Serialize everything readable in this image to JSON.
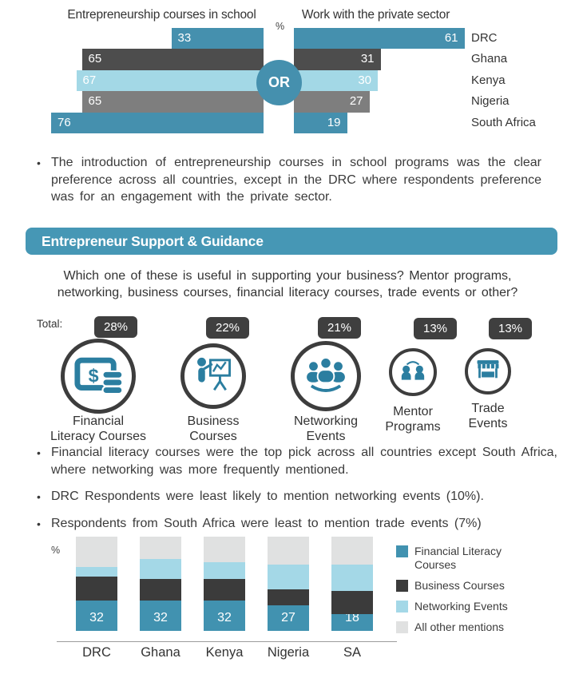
{
  "section_header": {
    "title": "Entrepreneur Support & Guidance",
    "bg_color": "#4697b5"
  },
  "bullets_top": [
    "The introduction of entrepreneurship courses in school programs was the clear preference across all countries, except in the DRC where respondents preference was for an engagement with the private sector."
  ],
  "question": {
    "line1": "Which one of these is useful in supporting your business? Mentor programs,",
    "line2": "networking, business courses, financial literacy courses, trade events or other?"
  },
  "totals": {
    "label": "Total:",
    "items": [
      {
        "pct": "28%",
        "line1": "Financial",
        "line2": "Literacy Courses",
        "icon": "financial-literacy-icon"
      },
      {
        "pct": "22%",
        "line1": "Business",
        "line2": "Courses",
        "icon": "business-courses-icon"
      },
      {
        "pct": "21%",
        "line1": "Networking",
        "line2": "Events",
        "icon": "networking-events-icon"
      },
      {
        "pct": "13%",
        "line1": "Mentor",
        "line2": "Programs",
        "icon": "mentor-programs-icon"
      },
      {
        "pct": "13%",
        "line1": "Trade",
        "line2": "Events",
        "icon": "trade-events-icon"
      }
    ],
    "icon_color": "#2b7ea0",
    "ring_color": "#3d3d3d",
    "badge_color": "#3f3f3f"
  },
  "bullets_mid": [
    "Financial literacy courses were the top pick across all countries except South Africa, where networking was more frequently mentioned.",
    "DRC Respondents were least likely to mention networking events (10%).",
    "Respondents from South Africa were least to mention trade events (7%)"
  ],
  "chart_data": [
    {
      "type": "bar",
      "subtype": "butterfly",
      "unit": "%",
      "center_label": "OR",
      "categories": [
        "DRC",
        "Ghana",
        "Kenya",
        "Nigeria",
        "South Africa"
      ],
      "series": [
        {
          "name": "Entrepreneurship courses in school",
          "values": [
            33,
            65,
            67,
            65,
            76
          ]
        },
        {
          "name": "Work with the private sector",
          "values": [
            61,
            31,
            30,
            27,
            19
          ]
        }
      ],
      "row_colors": [
        "#4590ae",
        "#4d4d4d",
        "#a3d8e6",
        "#7e7e7e",
        "#4590ae"
      ],
      "value_label_color": "#ffffff",
      "axis_range": [
        0,
        100
      ],
      "grid": false
    },
    {
      "type": "bar",
      "subtype": "stacked",
      "unit": "%",
      "categories": [
        "DRC",
        "Ghana",
        "Kenya",
        "Nigeria",
        "SA"
      ],
      "series": [
        {
          "name": "Financial Literacy Courses",
          "color": "#4192b0",
          "values": [
            32,
            32,
            32,
            27,
            18
          ],
          "show_labels": true
        },
        {
          "name": "Business Courses",
          "color": "#3b3b3b",
          "values": [
            26,
            23,
            23,
            17,
            24
          ],
          "show_labels": false
        },
        {
          "name": "Networking Events",
          "color": "#a4d8e7",
          "values": [
            10,
            21,
            18,
            26,
            28
          ],
          "show_labels": false
        },
        {
          "name": "All other mentions",
          "color": "#e0e1e1",
          "values": [
            32,
            24,
            27,
            30,
            30
          ],
          "show_labels": false
        }
      ],
      "axis_range": [
        0,
        100
      ],
      "grid": false,
      "legend_position": "right"
    }
  ]
}
